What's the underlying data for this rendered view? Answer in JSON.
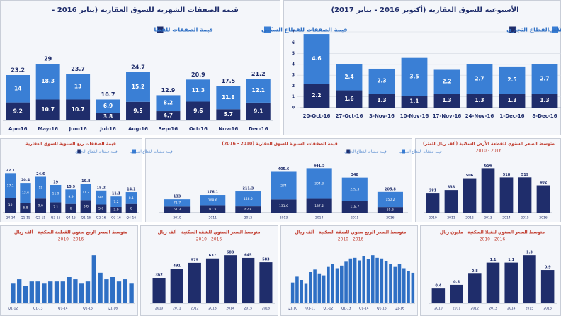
{
  "chart_data": [
    {
      "type": "stacked_bar",
      "title": "قيمة الصفقات الشهرية للسوق العقارية (يناير 2016 -",
      "categories": [
        "Apr-16",
        "May-16",
        "Jun-16",
        "Jul-16",
        "Aug-16",
        "Sep-16",
        "Oct-16",
        "Nov-16",
        "Dec-16"
      ],
      "series": [
        {
          "name": "قيمة الصفقات للقطا",
          "color": "#1f2d6b",
          "values": [
            9.2,
            10.7,
            10.7,
            3.8,
            9.5,
            4.7,
            9.6,
            5.7,
            9.1
          ]
        },
        {
          "name": "قيمة الصفقات للقطاع السكني",
          "color": "#3a7fd5",
          "values": [
            14.0,
            18.3,
            13.0,
            6.9,
            15.2,
            8.2,
            11.3,
            11.8,
            12.1
          ]
        }
      ],
      "totals": [
        23.2,
        29.0,
        23.7,
        10.7,
        24.7,
        12.9,
        20.9,
        17.5,
        21.2
      ]
    },
    {
      "type": "stacked_bar",
      "title": "الأسبوعية للسوق العقارية (أكتوبر 2016 - يناير 2017)",
      "categories": [
        "20-Oct-16",
        "27-Oct-16",
        "3-Nov-16",
        "10-Nov-16",
        "17-Nov-16",
        "24-Nov-16",
        "1-Dec-16",
        "8-Dec-16"
      ],
      "series": [
        {
          "name": "قيمة صفقات القطاع التجاري",
          "color": "#1f2d6b",
          "values": [
            2.2,
            1.6,
            1.3,
            1.1,
            1.3,
            1.3,
            1.3,
            1.3
          ]
        },
        {
          "name": "السكني",
          "color": "#3a7fd5",
          "values": [
            4.6,
            2.4,
            2.3,
            3.5,
            2.2,
            2.7,
            2.5,
            2.7
          ]
        }
      ],
      "ylim": [
        0,
        7
      ],
      "yticks": [
        0,
        1,
        2,
        3,
        4,
        5,
        6,
        7
      ],
      "grid": true
    },
    {
      "type": "stacked_bar",
      "title": "قيمة الصفقات ربع السنوية للسوق العقارية",
      "categories": [
        "Q4-14",
        "Q1-15",
        "Q2-15",
        "Q3-15",
        "Q4-15",
        "Q1-16",
        "Q2-16",
        "Q3-16",
        "Q4-16"
      ],
      "series": [
        {
          "name": "قيمة صفقات القطاع التجاري",
          "color": "#1f2d6b",
          "values": [
            10.0,
            6.8,
            9.6,
            7.1,
            6.0,
            8.6,
            5.6,
            3.9,
            6.0
          ]
        },
        {
          "name": "قيمة صفقات القطاع السكني",
          "color": "#3a7fd5",
          "values": [
            17.1,
            13.6,
            15.0,
            11.9,
            9.9,
            11.2,
            9.6,
            7.2,
            8.1
          ]
        }
      ],
      "totals": [
        27.1,
        20.4,
        24.6,
        19.0,
        15.9,
        19.8,
        15.2,
        11.1,
        14.1
      ]
    },
    {
      "type": "stacked_bar",
      "title": "قيمة الصفقات السنوية للسوق العقارية (2010 - 2016)",
      "categories": [
        "2010",
        "2011",
        "2012",
        "2013",
        "2014",
        "2015",
        "2016"
      ],
      "series": [
        {
          "name": "قيمة صفقات القطاع التجاري",
          "color": "#1f2d6b",
          "values": [
            61.3,
            67.5,
            62.8,
            131.6,
            137.2,
            118.7,
            55.6
          ]
        },
        {
          "name": "قيمة صفقات القطاع السكني",
          "color": "#3a7fd5",
          "values": [
            71.7,
            108.6,
            148.5,
            274.0,
            304.3,
            229.3,
            150.2
          ]
        }
      ],
      "totals": [
        133.0,
        176.1,
        211.3,
        405.6,
        441.5,
        348.0,
        205.8
      ]
    },
    {
      "type": "bar",
      "title": "متوسط السعر السنوي للقطعة الأرض السكنية (ألف ريال للمتر)",
      "subtitle": "2010 - 2016",
      "categories": [
        "2010",
        "2011",
        "2012",
        "2013",
        "2014",
        "2015",
        "2016"
      ],
      "values": [
        281,
        333,
        506,
        654,
        518,
        519,
        402
      ],
      "color": "#1f2d6b"
    },
    {
      "type": "bar",
      "title": "متوسط السعر الربع سنوي للقطعة السكنية - ألف ريال",
      "subtitle": "2010 - 2016",
      "categories": [
        "Q1-12",
        null,
        null,
        null,
        "Q1-13",
        null,
        null,
        null,
        "Q1-14",
        null,
        null,
        null,
        "Q1-15",
        null,
        null,
        null,
        "Q1-16",
        null,
        null,
        null
      ],
      "values": [
        0.9,
        1.1,
        0.8,
        1.0,
        1.0,
        0.9,
        1.0,
        1.0,
        1.0,
        1.2,
        1.1,
        0.9,
        1.0,
        2.2,
        1.4,
        1.1,
        1.2,
        1.0,
        1.1,
        0.9
      ],
      "color": "#2e6fc4"
    },
    {
      "type": "bar",
      "title": "متوسط السعر السنوي للشقة السكنية - ألف ريال",
      "subtitle": "2010 - 2016",
      "categories": [
        "2010",
        "2011",
        "2012",
        "2013",
        "2014",
        "2015",
        "2016"
      ],
      "values": [
        362,
        491,
        575,
        637,
        683,
        645,
        583
      ],
      "color": "#1f2d6b"
    },
    {
      "type": "bar",
      "title": "متوسط السعر الربع سنوي للشقة السكنية - ألف ريال",
      "subtitle": "2010 - 2016",
      "categories": [
        "Q1-10",
        null,
        null,
        null,
        "Q1-11",
        null,
        null,
        null,
        "Q1-12",
        null,
        null,
        null,
        "Q1-13",
        null,
        null,
        null,
        "Q1-14",
        null,
        null,
        null,
        "Q1-15",
        null,
        null,
        null,
        "Q1-16",
        null,
        null,
        null
      ],
      "values": [
        320,
        410,
        360,
        300,
        480,
        520,
        450,
        430,
        560,
        600,
        540,
        580,
        640,
        690,
        700,
        660,
        720,
        680,
        740,
        700,
        690,
        650,
        600,
        560,
        600,
        540,
        500,
        470
      ],
      "color": "#2e6fc4"
    },
    {
      "type": "bar",
      "title": "متوسط السعر السنوي للفيلا السكنية - مليون ريال",
      "subtitle": "2010 - 2016",
      "categories": [
        "2010",
        "2011",
        "2012",
        "2013",
        "2014",
        "2015",
        "2016"
      ],
      "values": [
        0.4,
        0.5,
        0.8,
        1.1,
        1.1,
        1.3,
        0.9
      ],
      "color": "#1f2d6b"
    }
  ]
}
